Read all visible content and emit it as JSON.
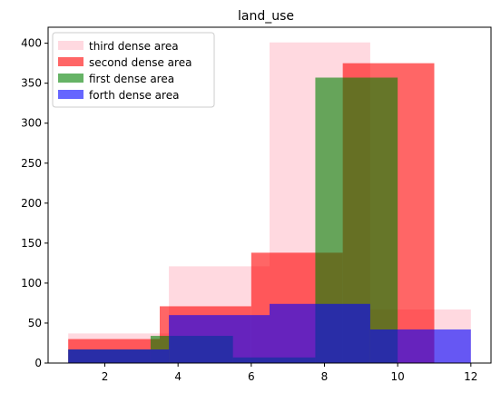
{
  "chart_data": {
    "type": "bar",
    "title": "land_use",
    "xlabel": "",
    "ylabel": "",
    "xlim": [
      0.45,
      12.55
    ],
    "ylim": [
      0,
      420
    ],
    "x_ticks": [
      2,
      4,
      6,
      8,
      10,
      12
    ],
    "y_ticks": [
      0,
      50,
      100,
      150,
      200,
      250,
      300,
      350,
      400
    ],
    "grid": false,
    "legend_position": "top-left",
    "series": [
      {
        "name": "third dense area",
        "color": "#ffc0cb",
        "opacity": 0.6,
        "bins": [
          {
            "x0": 1.0,
            "x1": 3.75,
            "value": 37
          },
          {
            "x0": 3.75,
            "x1": 6.5,
            "value": 121
          },
          {
            "x0": 6.5,
            "x1": 9.25,
            "value": 401
          },
          {
            "x0": 9.25,
            "x1": 12.0,
            "value": 67
          }
        ]
      },
      {
        "name": "second dense area",
        "color": "#ff0000",
        "opacity": 0.6,
        "bins": [
          {
            "x0": 1.0,
            "x1": 3.5,
            "value": 30
          },
          {
            "x0": 3.5,
            "x1": 6.0,
            "value": 71
          },
          {
            "x0": 6.0,
            "x1": 8.5,
            "value": 138
          },
          {
            "x0": 8.5,
            "x1": 11.0,
            "value": 375
          }
        ]
      },
      {
        "name": "first dense area",
        "color": "#008000",
        "opacity": 0.6,
        "bins": [
          {
            "x0": 1.0,
            "x1": 3.25,
            "value": 17
          },
          {
            "x0": 3.25,
            "x1": 5.5,
            "value": 34
          },
          {
            "x0": 5.5,
            "x1": 7.75,
            "value": 7
          },
          {
            "x0": 7.75,
            "x1": 10.0,
            "value": 357
          }
        ]
      },
      {
        "name": "forth dense area",
        "color": "#0000ff",
        "opacity": 0.6,
        "bins": [
          {
            "x0": 1.0,
            "x1": 3.75,
            "value": 17
          },
          {
            "x0": 3.75,
            "x1": 6.5,
            "value": 60
          },
          {
            "x0": 6.5,
            "x1": 9.25,
            "value": 74
          },
          {
            "x0": 9.25,
            "x1": 12.0,
            "value": 42
          }
        ]
      }
    ],
    "legend_order": [
      "third dense area",
      "second dense area",
      "first dense area",
      "forth dense area"
    ]
  }
}
